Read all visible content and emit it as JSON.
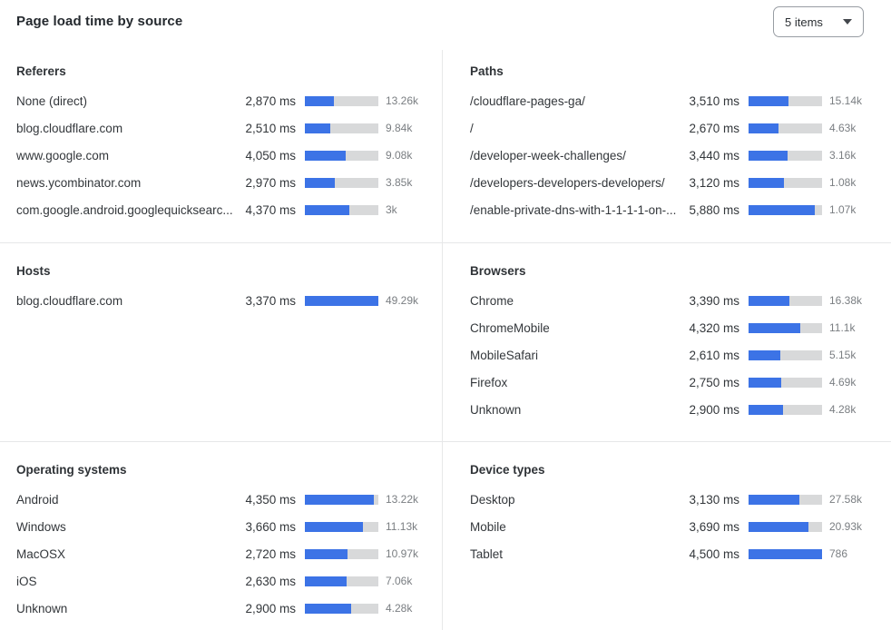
{
  "header": {
    "title": "Page load time by source",
    "items_selector": {
      "label": "5 items",
      "icon": "caret-down-icon"
    }
  },
  "colors": {
    "bar_fill": "#3c73e6",
    "bar_track": "#d8d9da",
    "divider": "#e6e7e8",
    "text_primary": "#33373b",
    "text_count": "#7a7e82"
  },
  "value_suffix": "ms",
  "chart_data": [
    {
      "type": "bar",
      "title": "Referers",
      "orientation": "horizontal",
      "grid_position": {
        "row": 0,
        "col": 0
      },
      "scale_ms": 7250,
      "rows": [
        {
          "label": "None (direct)",
          "value_ms": 2870,
          "count": "13.26k"
        },
        {
          "label": "blog.cloudflare.com",
          "value_ms": 2510,
          "count": "9.84k"
        },
        {
          "label": "www.google.com",
          "value_ms": 4050,
          "count": "9.08k"
        },
        {
          "label": "news.ycombinator.com",
          "value_ms": 2970,
          "count": "3.85k"
        },
        {
          "label": "com.google.android.googlequicksearc...",
          "value_ms": 4370,
          "count": "3k"
        }
      ]
    },
    {
      "type": "bar",
      "title": "Paths",
      "orientation": "horizontal",
      "grid_position": {
        "row": 0,
        "col": 1
      },
      "scale_ms": 6520,
      "rows": [
        {
          "label": "/cloudflare-pages-ga/",
          "value_ms": 3510,
          "count": "15.14k"
        },
        {
          "label": "/",
          "value_ms": 2670,
          "count": "4.63k"
        },
        {
          "label": "/developer-week-challenges/",
          "value_ms": 3440,
          "count": "3.16k"
        },
        {
          "label": "/developers-developers-developers/",
          "value_ms": 3120,
          "count": "1.08k"
        },
        {
          "label": "/enable-private-dns-with-1-1-1-1-on-...",
          "value_ms": 5880,
          "count": "1.07k"
        }
      ]
    },
    {
      "type": "bar",
      "title": "Hosts",
      "orientation": "horizontal",
      "grid_position": {
        "row": 1,
        "col": 0
      },
      "scale_ms": 3370,
      "rows": [
        {
          "label": "blog.cloudflare.com",
          "value_ms": 3370,
          "count": "49.29k"
        }
      ]
    },
    {
      "type": "bar",
      "title": "Browsers",
      "orientation": "horizontal",
      "grid_position": {
        "row": 1,
        "col": 1
      },
      "scale_ms": 6120,
      "rows": [
        {
          "label": "Chrome",
          "value_ms": 3390,
          "count": "16.38k"
        },
        {
          "label": "ChromeMobile",
          "value_ms": 4320,
          "count": "11.1k"
        },
        {
          "label": "MobileSafari",
          "value_ms": 2610,
          "count": "5.15k"
        },
        {
          "label": "Firefox",
          "value_ms": 2750,
          "count": "4.69k"
        },
        {
          "label": "Unknown",
          "value_ms": 2900,
          "count": "4.28k"
        }
      ]
    },
    {
      "type": "bar",
      "title": "Operating systems",
      "orientation": "horizontal",
      "grid_position": {
        "row": 2,
        "col": 0
      },
      "scale_ms": 4640,
      "rows": [
        {
          "label": "Android",
          "value_ms": 4350,
          "count": "13.22k"
        },
        {
          "label": "Windows",
          "value_ms": 3660,
          "count": "11.13k"
        },
        {
          "label": "MacOSX",
          "value_ms": 2720,
          "count": "10.97k"
        },
        {
          "label": "iOS",
          "value_ms": 2630,
          "count": "7.06k"
        },
        {
          "label": "Unknown",
          "value_ms": 2900,
          "count": "4.28k"
        }
      ]
    },
    {
      "type": "bar",
      "title": "Device types",
      "orientation": "horizontal",
      "grid_position": {
        "row": 2,
        "col": 1
      },
      "scale_ms": 4500,
      "rows": [
        {
          "label": "Desktop",
          "value_ms": 3130,
          "count": "27.58k"
        },
        {
          "label": "Mobile",
          "value_ms": 3690,
          "count": "20.93k"
        },
        {
          "label": "Tablet",
          "value_ms": 4500,
          "count": "786"
        }
      ]
    }
  ]
}
